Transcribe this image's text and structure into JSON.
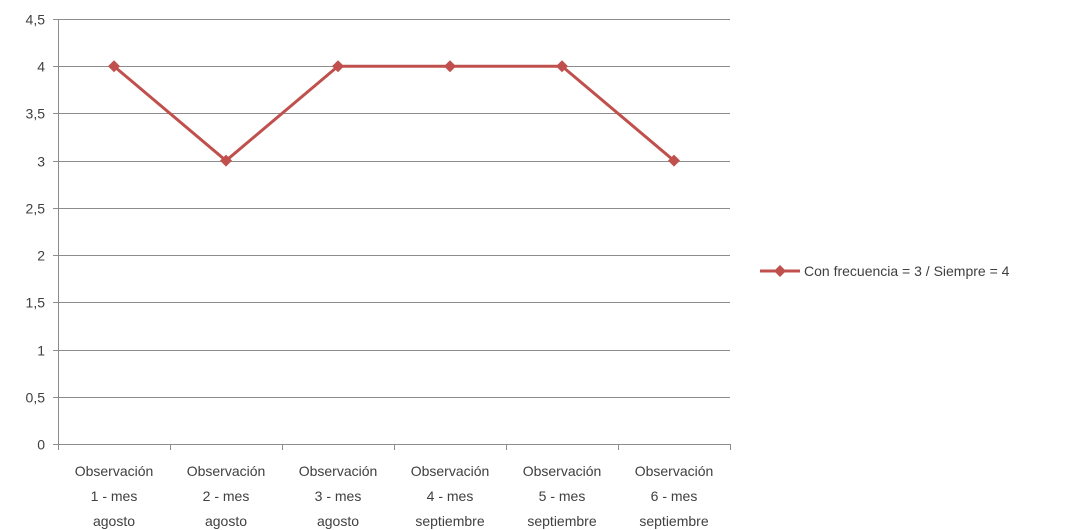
{
  "chart_data": {
    "type": "line",
    "categories": [
      [
        "Observación",
        "1 - mes",
        "agosto"
      ],
      [
        "Observación",
        "2 - mes",
        "agosto"
      ],
      [
        "Observación",
        "3 - mes",
        "agosto"
      ],
      [
        "Observación",
        "4 - mes",
        "septiembre"
      ],
      [
        "Observación",
        "5 - mes",
        "septiembre"
      ],
      [
        "Observación",
        "6 - mes",
        "septiembre"
      ]
    ],
    "y_ticks": [
      "0",
      "0,5",
      "1",
      "1,5",
      "2",
      "2,5",
      "3",
      "3,5",
      "4",
      "4,5"
    ],
    "ylim": [
      0,
      4.5
    ],
    "grid": true,
    "legend_position": "right",
    "series": [
      {
        "name": "Con frecuencia = 3 / Siempre = 4",
        "color": "#c0504d",
        "values": [
          4,
          3,
          4,
          4,
          4,
          3
        ]
      }
    ]
  }
}
